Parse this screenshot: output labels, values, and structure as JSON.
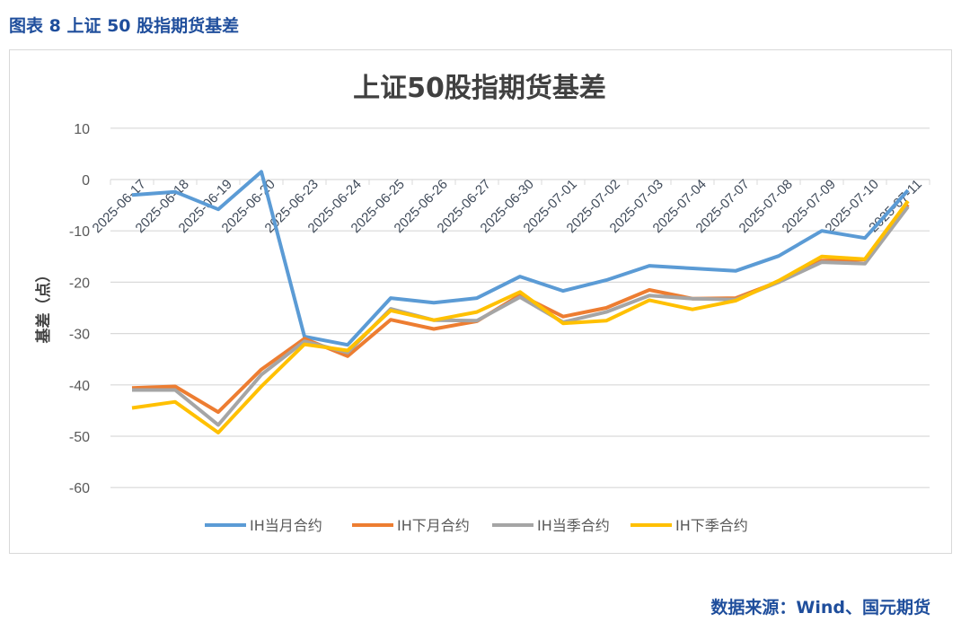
{
  "figure_label": "图表 8  上证 50 股指期货基差",
  "source": "数据来源：Wind、国元期货",
  "chart_data": {
    "type": "line",
    "title": "上证50股指期货基差",
    "xlabel": "",
    "ylabel": "基差（点）",
    "ylim": [
      -60,
      10
    ],
    "yticks": [
      10,
      0,
      -10,
      -20,
      -30,
      -40,
      -50,
      -60
    ],
    "grid": true,
    "legend": "bottom",
    "categories": [
      "2025-06-17",
      "2025-06-18",
      "2025-06-19",
      "2025-06-20",
      "2025-06-23",
      "2025-06-24",
      "2025-06-25",
      "2025-06-26",
      "2025-06-27",
      "2025-06-30",
      "2025-07-01",
      "2025-07-02",
      "2025-07-03",
      "2025-07-04",
      "2025-07-07",
      "2025-07-08",
      "2025-07-09",
      "2025-07-10",
      "2025-07-11"
    ],
    "series": [
      {
        "name": "IH当月合约",
        "color": "#5b9bd5",
        "values": [
          -3.0,
          -2.4,
          -5.8,
          1.5,
          -30.6,
          -32.2,
          -23.1,
          -24.0,
          -23.1,
          -18.9,
          -21.7,
          -19.6,
          -16.8,
          -17.3,
          -17.8,
          -14.9,
          -10.0,
          -11.4,
          -2.1
        ]
      },
      {
        "name": "IH下月合约",
        "color": "#ed7d31",
        "values": [
          -40.6,
          -40.3,
          -45.3,
          -37.0,
          -31.0,
          -34.4,
          -27.3,
          -29.1,
          -27.6,
          -22.5,
          -26.7,
          -25.0,
          -21.5,
          -23.2,
          -23.1,
          -19.9,
          -15.8,
          -15.6,
          -4.9
        ]
      },
      {
        "name": "IH当季合约",
        "color": "#a5a5a5",
        "values": [
          -41.0,
          -41.0,
          -47.8,
          -38.0,
          -31.5,
          -33.7,
          -25.2,
          -27.4,
          -27.5,
          -22.9,
          -27.8,
          -25.8,
          -22.6,
          -23.2,
          -23.4,
          -20.0,
          -16.1,
          -16.4,
          -5.3
        ]
      },
      {
        "name": "IH下季合约",
        "color": "#ffc000",
        "values": [
          -44.5,
          -43.3,
          -49.3,
          -40.3,
          -32.1,
          -33.3,
          -25.5,
          -27.4,
          -25.8,
          -21.9,
          -28.0,
          -27.5,
          -23.5,
          -25.3,
          -23.6,
          -19.7,
          -15.0,
          -15.5,
          -4.2
        ]
      }
    ]
  }
}
